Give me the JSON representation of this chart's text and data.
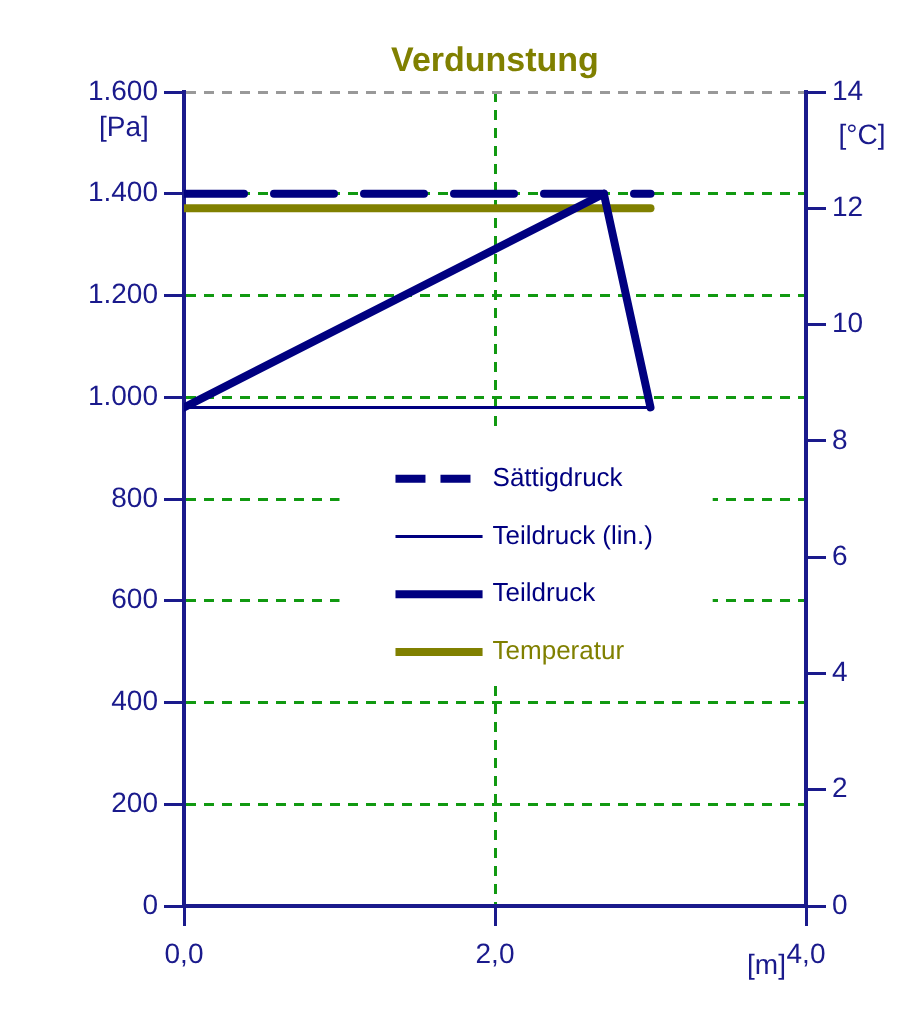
{
  "chart_data": {
    "type": "line",
    "title": "Verdunstung",
    "xlabel": "[m]",
    "ylabel": "[Pa]",
    "y2label": "[°C]",
    "xlim": [
      0,
      4
    ],
    "xticks": [
      {
        "value": 0,
        "label": "0,0"
      },
      {
        "value": 2,
        "label": "2,0"
      },
      {
        "value": 4,
        "label": "4,0"
      }
    ],
    "ylim": [
      0,
      1600
    ],
    "yticks": [
      0,
      200,
      400,
      600,
      800,
      {
        "value": 1000,
        "label": "1.000"
      },
      {
        "value": 1200,
        "label": "1.200"
      },
      {
        "value": 1400,
        "label": "1.400"
      },
      {
        "value": 1600,
        "label": "1.600"
      }
    ],
    "y2lim": [
      0,
      14
    ],
    "y2ticks": [
      0,
      2,
      4,
      6,
      8,
      10,
      12,
      14
    ],
    "grid": true,
    "legend": "center",
    "marker": "none",
    "series": [
      {
        "name": "Sättigdruck",
        "color": "#000080",
        "line_style": "dashed",
        "x": [
          0,
          3.0
        ],
        "values": [
          1400,
          1400
        ]
      },
      {
        "name": "Teildruck (lin.)",
        "color": "#000080",
        "line_style": "solid",
        "x": [
          0,
          3.0
        ],
        "values": [
          980,
          980
        ]
      },
      {
        "name": "Teildruck",
        "color": "#000080",
        "line_style": "solid",
        "x": [
          0,
          2.7,
          3.0
        ],
        "values": [
          980,
          1400,
          980
        ]
      },
      {
        "name": "Temperatur",
        "color": "#808000",
        "line_style": "solid",
        "axis": "y2",
        "x": [
          0,
          3.0
        ],
        "values": [
          12,
          12
        ]
      }
    ]
  }
}
